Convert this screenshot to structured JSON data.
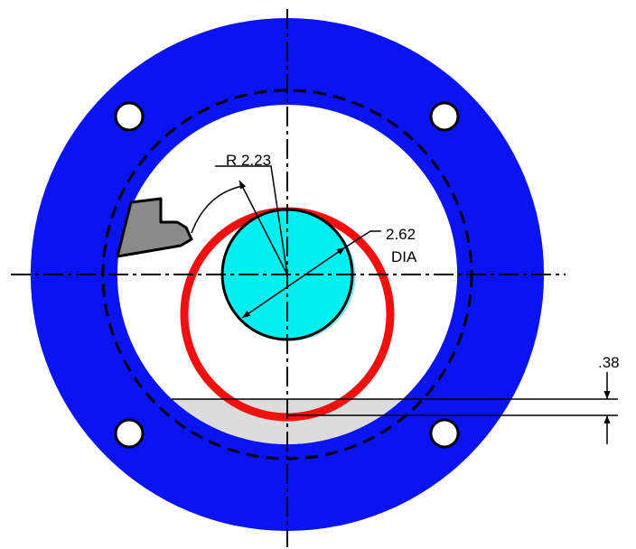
{
  "dimensions": {
    "radius_label": "R 2.23",
    "diameter_value": "2.62",
    "diameter_suffix": "DIA",
    "offset_label": ".38"
  },
  "colors": {
    "flange": "#0a14f0",
    "red_circle": "#f01010",
    "shaft_fill": "#00f0f0",
    "shaft_outline": "#80e8f0",
    "chip_fill": "#8a8a8a",
    "segment_fill": "#dcdcdc",
    "line": "#000000"
  }
}
